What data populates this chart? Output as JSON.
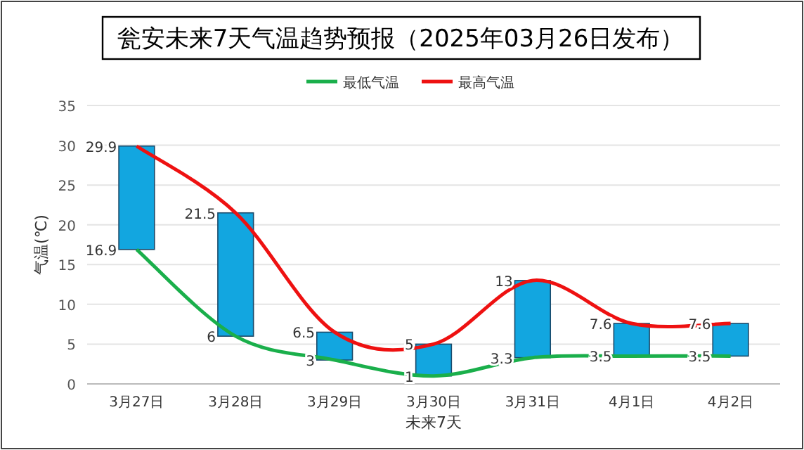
{
  "chart_data": {
    "type": "bar",
    "title": "瓮安未来7天气温趋势预报（2025年03月26日发布）",
    "xlabel": "未来7天",
    "ylabel": "气温(℃)",
    "categories": [
      "3月27日",
      "3月28日",
      "3月29日",
      "3月30日",
      "3月31日",
      "4月1日",
      "4月2日"
    ],
    "ylim": [
      0,
      35
    ],
    "yticks": [
      0,
      5,
      10,
      15,
      20,
      25,
      30,
      35
    ],
    "grid": "y",
    "legend": "top",
    "series": [
      {
        "color": "#12a6e0",
        "base": [
          16.9,
          6,
          3,
          1,
          3.3,
          3.5,
          3.5
        ],
        "values": [
          13.0,
          15.5,
          3.5,
          4,
          9.7,
          4.1,
          4.1
        ]
      },
      {
        "type": "line",
        "name": "最低气温",
        "color": "#1aaf4b",
        "marker": "none",
        "values": [
          16.9,
          6,
          3,
          1,
          3.3,
          3.5,
          3.5
        ],
        "value_labels": [
          "16.9",
          "6",
          "3",
          "1",
          "3.3",
          "3.5",
          "3.5"
        ]
      },
      {
        "type": "line",
        "name": "最高气温",
        "color": "#ee1111",
        "marker": "none",
        "values": [
          29.9,
          21.5,
          6.5,
          5,
          13,
          7.6,
          7.6
        ],
        "value_labels": [
          "29.9",
          "21.5",
          "6.5",
          "5",
          "13",
          "7.6",
          "7.6"
        ]
      }
    ]
  }
}
